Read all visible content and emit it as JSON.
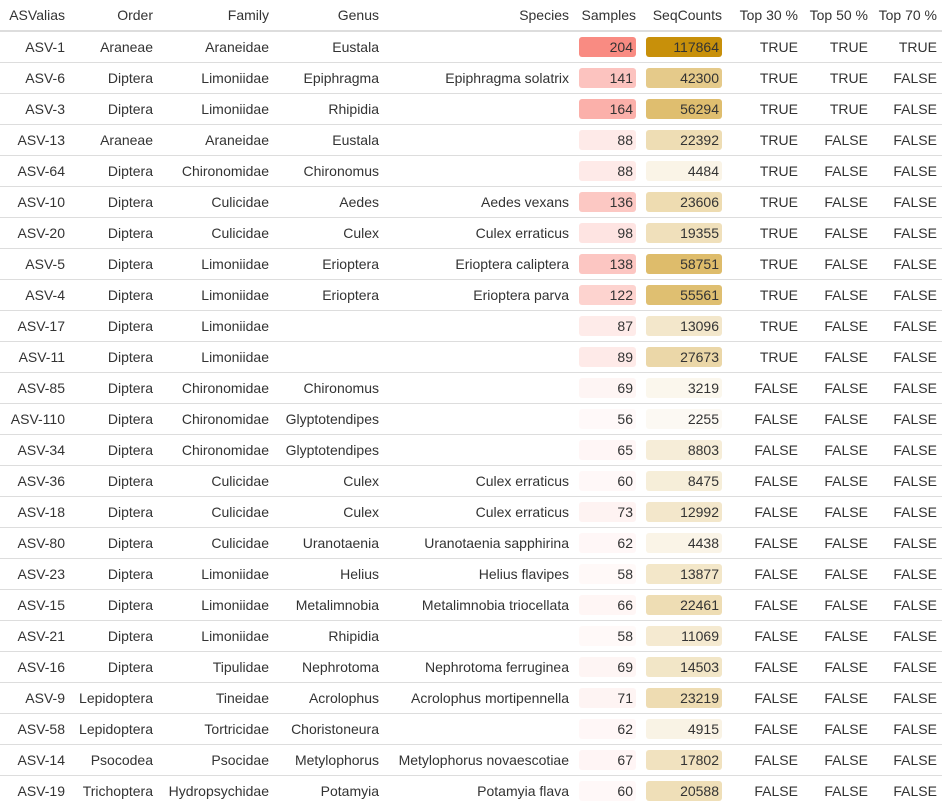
{
  "columns": [
    "ASValias",
    "Order",
    "Family",
    "Genus",
    "Species",
    "Samples",
    "SeqCounts",
    "Top 30 %",
    "Top 50 %",
    "Top 70 %"
  ],
  "colors": {
    "samples": "#f98b82",
    "seqcounts": "#c8900a"
  },
  "scale": {
    "samples_min": 56,
    "samples_max": 204,
    "seqcounts_min": 2255,
    "seqcounts_max": 117864
  },
  "rows": [
    {
      "asv": "ASV-1",
      "order": "Araneae",
      "family": "Araneidae",
      "genus": "Eustala",
      "species": "",
      "samples": 204,
      "seqcounts": 117864,
      "top30": "TRUE",
      "top50": "TRUE",
      "top70": "TRUE"
    },
    {
      "asv": "ASV-6",
      "order": "Diptera",
      "family": "Limoniidae",
      "genus": "Epiphragma",
      "species": "Epiphragma solatrix",
      "samples": 141,
      "seqcounts": 42300,
      "top30": "TRUE",
      "top50": "TRUE",
      "top70": "FALSE"
    },
    {
      "asv": "ASV-3",
      "order": "Diptera",
      "family": "Limoniidae",
      "genus": "Rhipidia",
      "species": "",
      "samples": 164,
      "seqcounts": 56294,
      "top30": "TRUE",
      "top50": "TRUE",
      "top70": "FALSE"
    },
    {
      "asv": "ASV-13",
      "order": "Araneae",
      "family": "Araneidae",
      "genus": "Eustala",
      "species": "",
      "samples": 88,
      "seqcounts": 22392,
      "top30": "TRUE",
      "top50": "FALSE",
      "top70": "FALSE"
    },
    {
      "asv": "ASV-64",
      "order": "Diptera",
      "family": "Chironomidae",
      "genus": "Chironomus",
      "species": "",
      "samples": 88,
      "seqcounts": 4484,
      "top30": "TRUE",
      "top50": "FALSE",
      "top70": "FALSE"
    },
    {
      "asv": "ASV-10",
      "order": "Diptera",
      "family": "Culicidae",
      "genus": "Aedes",
      "species": "Aedes vexans",
      "samples": 136,
      "seqcounts": 23606,
      "top30": "TRUE",
      "top50": "FALSE",
      "top70": "FALSE"
    },
    {
      "asv": "ASV-20",
      "order": "Diptera",
      "family": "Culicidae",
      "genus": "Culex",
      "species": "Culex erraticus",
      "samples": 98,
      "seqcounts": 19355,
      "top30": "TRUE",
      "top50": "FALSE",
      "top70": "FALSE"
    },
    {
      "asv": "ASV-5",
      "order": "Diptera",
      "family": "Limoniidae",
      "genus": "Erioptera",
      "species": "Erioptera caliptera",
      "samples": 138,
      "seqcounts": 58751,
      "top30": "TRUE",
      "top50": "FALSE",
      "top70": "FALSE"
    },
    {
      "asv": "ASV-4",
      "order": "Diptera",
      "family": "Limoniidae",
      "genus": "Erioptera",
      "species": "Erioptera parva",
      "samples": 122,
      "seqcounts": 55561,
      "top30": "TRUE",
      "top50": "FALSE",
      "top70": "FALSE"
    },
    {
      "asv": "ASV-17",
      "order": "Diptera",
      "family": "Limoniidae",
      "genus": "",
      "species": "",
      "samples": 87,
      "seqcounts": 13096,
      "top30": "TRUE",
      "top50": "FALSE",
      "top70": "FALSE"
    },
    {
      "asv": "ASV-11",
      "order": "Diptera",
      "family": "Limoniidae",
      "genus": "",
      "species": "",
      "samples": 89,
      "seqcounts": 27673,
      "top30": "TRUE",
      "top50": "FALSE",
      "top70": "FALSE"
    },
    {
      "asv": "ASV-85",
      "order": "Diptera",
      "family": "Chironomidae",
      "genus": "Chironomus",
      "species": "",
      "samples": 69,
      "seqcounts": 3219,
      "top30": "FALSE",
      "top50": "FALSE",
      "top70": "FALSE"
    },
    {
      "asv": "ASV-110",
      "order": "Diptera",
      "family": "Chironomidae",
      "genus": "Glyptotendipes",
      "species": "",
      "samples": 56,
      "seqcounts": 2255,
      "top30": "FALSE",
      "top50": "FALSE",
      "top70": "FALSE"
    },
    {
      "asv": "ASV-34",
      "order": "Diptera",
      "family": "Chironomidae",
      "genus": "Glyptotendipes",
      "species": "",
      "samples": 65,
      "seqcounts": 8803,
      "top30": "FALSE",
      "top50": "FALSE",
      "top70": "FALSE"
    },
    {
      "asv": "ASV-36",
      "order": "Diptera",
      "family": "Culicidae",
      "genus": "Culex",
      "species": "Culex erraticus",
      "samples": 60,
      "seqcounts": 8475,
      "top30": "FALSE",
      "top50": "FALSE",
      "top70": "FALSE"
    },
    {
      "asv": "ASV-18",
      "order": "Diptera",
      "family": "Culicidae",
      "genus": "Culex",
      "species": "Culex erraticus",
      "samples": 73,
      "seqcounts": 12992,
      "top30": "FALSE",
      "top50": "FALSE",
      "top70": "FALSE"
    },
    {
      "asv": "ASV-80",
      "order": "Diptera",
      "family": "Culicidae",
      "genus": "Uranotaenia",
      "species": "Uranotaenia sapphirina",
      "samples": 62,
      "seqcounts": 4438,
      "top30": "FALSE",
      "top50": "FALSE",
      "top70": "FALSE"
    },
    {
      "asv": "ASV-23",
      "order": "Diptera",
      "family": "Limoniidae",
      "genus": "Helius",
      "species": "Helius flavipes",
      "samples": 58,
      "seqcounts": 13877,
      "top30": "FALSE",
      "top50": "FALSE",
      "top70": "FALSE"
    },
    {
      "asv": "ASV-15",
      "order": "Diptera",
      "family": "Limoniidae",
      "genus": "Metalimnobia",
      "species": "Metalimnobia triocellata",
      "samples": 66,
      "seqcounts": 22461,
      "top30": "FALSE",
      "top50": "FALSE",
      "top70": "FALSE"
    },
    {
      "asv": "ASV-21",
      "order": "Diptera",
      "family": "Limoniidae",
      "genus": "Rhipidia",
      "species": "",
      "samples": 58,
      "seqcounts": 11069,
      "top30": "FALSE",
      "top50": "FALSE",
      "top70": "FALSE"
    },
    {
      "asv": "ASV-16",
      "order": "Diptera",
      "family": "Tipulidae",
      "genus": "Nephrotoma",
      "species": "Nephrotoma ferruginea",
      "samples": 69,
      "seqcounts": 14503,
      "top30": "FALSE",
      "top50": "FALSE",
      "top70": "FALSE"
    },
    {
      "asv": "ASV-9",
      "order": "Lepidoptera",
      "family": "Tineidae",
      "genus": "Acrolophus",
      "species": "Acrolophus mortipennella",
      "samples": 71,
      "seqcounts": 23219,
      "top30": "FALSE",
      "top50": "FALSE",
      "top70": "FALSE"
    },
    {
      "asv": "ASV-58",
      "order": "Lepidoptera",
      "family": "Tortricidae",
      "genus": "Choristoneura",
      "species": "",
      "samples": 62,
      "seqcounts": 4915,
      "top30": "FALSE",
      "top50": "FALSE",
      "top70": "FALSE"
    },
    {
      "asv": "ASV-14",
      "order": "Psocodea",
      "family": "Psocidae",
      "genus": "Metylophorus",
      "species": "Metylophorus novaescotiae",
      "samples": 67,
      "seqcounts": 17802,
      "top30": "FALSE",
      "top50": "FALSE",
      "top70": "FALSE"
    },
    {
      "asv": "ASV-19",
      "order": "Trichoptera",
      "family": "Hydropsychidae",
      "genus": "Potamyia",
      "species": "Potamyia flava",
      "samples": 60,
      "seqcounts": 20588,
      "top30": "FALSE",
      "top50": "FALSE",
      "top70": "FALSE"
    }
  ]
}
